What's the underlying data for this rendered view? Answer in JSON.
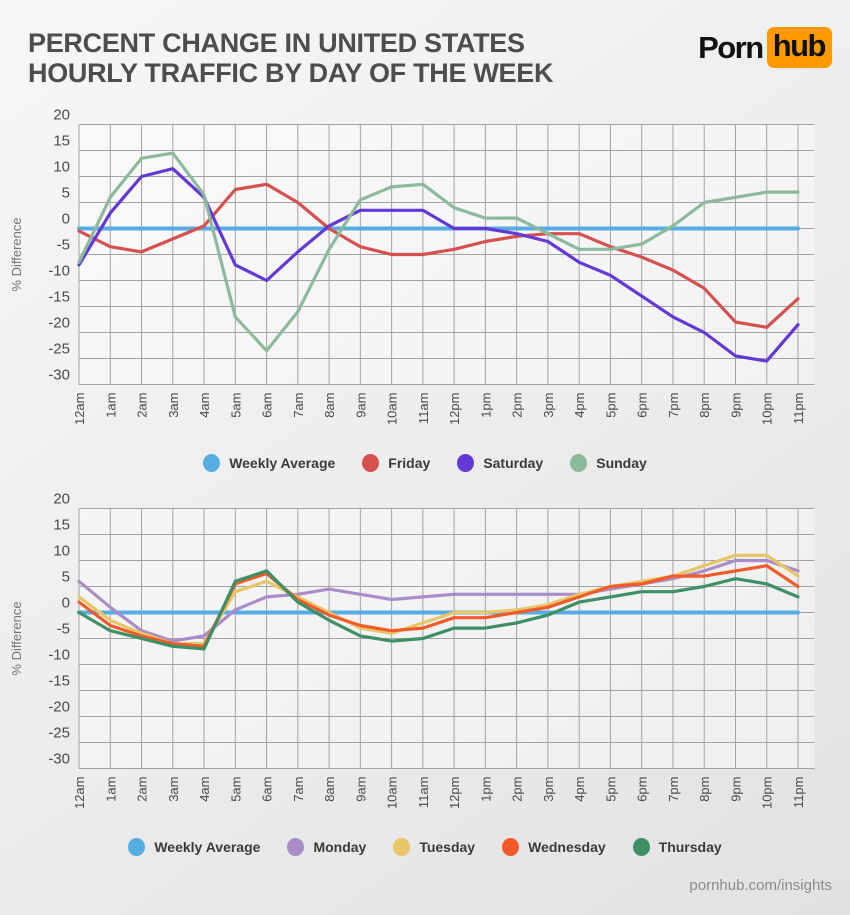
{
  "header": {
    "title_line1": "PERCENT CHANGE IN UNITED STATES",
    "title_line2": "HOURLY TRAFFIC BY DAY OF THE WEEK",
    "logo_text_plain": "Porn",
    "logo_text_badge": "hub"
  },
  "footer": {
    "text": "pornhub.com/insights"
  },
  "style": {
    "background_top": "#f7f7f7",
    "background_bottom": "#e2e2e2",
    "logo_badge_color": "#ff9900",
    "grid_color": "#a3a3a3",
    "tick_color": "#4a4a4a",
    "title_color": "#4d4d4d",
    "legend_text_color": "#3a3a3a",
    "footer_color": "#8c8c8c"
  },
  "chart_data": [
    {
      "type": "line",
      "title": "",
      "xlabel": "",
      "ylabel": "% Difference",
      "ylim": [
        -30,
        20
      ],
      "ytick_step": 5,
      "grid": true,
      "legend_position": "bottom",
      "x": [
        "12am",
        "1am",
        "2am",
        "3am",
        "4am",
        "5am",
        "6am",
        "7am",
        "8am",
        "9am",
        "10am",
        "11am",
        "12pm",
        "1pm",
        "2pm",
        "3pm",
        "4pm",
        "5pm",
        "6pm",
        "7pm",
        "8pm",
        "9pm",
        "10pm",
        "11pm"
      ],
      "series": [
        {
          "name": "Weekly Average",
          "color": "#56ade4",
          "values": [
            0,
            0,
            0,
            0,
            0,
            0,
            0,
            0,
            0,
            0,
            0,
            0,
            0,
            0,
            0,
            0,
            0,
            0,
            0,
            0,
            0,
            0,
            0,
            0
          ]
        },
        {
          "name": "Friday",
          "color": "#d5504e",
          "values": [
            -0.5,
            -3.5,
            -4.5,
            -2,
            0.5,
            7.5,
            8.5,
            5,
            0,
            -3.5,
            -5,
            -5,
            -4,
            -2.5,
            -1.5,
            -1,
            -1,
            -3.5,
            -5.5,
            -8,
            -11.5,
            -18,
            -19,
            -13.5
          ]
        },
        {
          "name": "Saturday",
          "color": "#6438d4",
          "values": [
            -7,
            3,
            10,
            11.5,
            6,
            -7,
            -10,
            -4.5,
            0.5,
            3.5,
            3.5,
            3.5,
            0,
            0,
            -1,
            -2.5,
            -6.5,
            -9,
            -13,
            -17,
            -20,
            -24.5,
            -25.5,
            -18.5
          ]
        },
        {
          "name": "Sunday",
          "color": "#8cba9b",
          "values": [
            -6.5,
            6,
            13.5,
            14.5,
            6.5,
            -17,
            -23.5,
            -16,
            -4,
            5.5,
            8,
            8.5,
            4,
            2,
            2,
            -1,
            -4,
            -4,
            -3,
            0.5,
            5,
            6,
            7,
            7
          ]
        }
      ]
    },
    {
      "type": "line",
      "title": "",
      "xlabel": "",
      "ylabel": "% Difference",
      "ylim": [
        -30,
        20
      ],
      "ytick_step": 5,
      "grid": true,
      "legend_position": "bottom",
      "x": [
        "12am",
        "1am",
        "2am",
        "3am",
        "4am",
        "5am",
        "6am",
        "7am",
        "8am",
        "9am",
        "10am",
        "11am",
        "12pm",
        "1pm",
        "2pm",
        "3pm",
        "4pm",
        "5pm",
        "6pm",
        "7pm",
        "8pm",
        "9pm",
        "10pm",
        "11pm"
      ],
      "series": [
        {
          "name": "Weekly Average",
          "color": "#56ade4",
          "values": [
            0,
            0,
            0,
            0,
            0,
            0,
            0,
            0,
            0,
            0,
            0,
            0,
            0,
            0,
            0,
            0,
            0,
            0,
            0,
            0,
            0,
            0,
            0,
            0
          ]
        },
        {
          "name": "Monday",
          "color": "#aa8dc8",
          "values": [
            6,
            1,
            -3.5,
            -5.5,
            -4.5,
            0.5,
            3,
            3.5,
            4.5,
            3.5,
            2.5,
            3,
            3.5,
            3.5,
            3.5,
            3.5,
            3.5,
            4.5,
            5.5,
            6.5,
            8,
            10,
            10,
            8
          ]
        },
        {
          "name": "Tuesday",
          "color": "#e8c566",
          "values": [
            3,
            -1.5,
            -4,
            -6,
            -6,
            4,
            6,
            3,
            0,
            -3,
            -4,
            -2,
            0,
            0,
            0.5,
            1.5,
            3.5,
            5,
            6,
            7,
            9,
            11,
            11,
            7
          ]
        },
        {
          "name": "Wednesday",
          "color": "#f15b2a",
          "values": [
            2,
            -2.5,
            -4.5,
            -6,
            -6.5,
            5.5,
            7.5,
            2.5,
            -0.5,
            -2.5,
            -3.5,
            -3,
            -1,
            -1,
            0,
            1,
            3,
            5,
            5.5,
            7,
            7,
            8,
            9,
            5
          ]
        },
        {
          "name": "Thursday",
          "color": "#3e9064",
          "values": [
            0,
            -3.5,
            -5,
            -6.5,
            -7,
            6,
            8,
            2,
            -1.5,
            -4.5,
            -5.5,
            -5,
            -3,
            -3,
            -2,
            -0.5,
            2,
            3,
            4,
            4,
            5,
            6.5,
            5.5,
            3
          ]
        }
      ]
    }
  ]
}
